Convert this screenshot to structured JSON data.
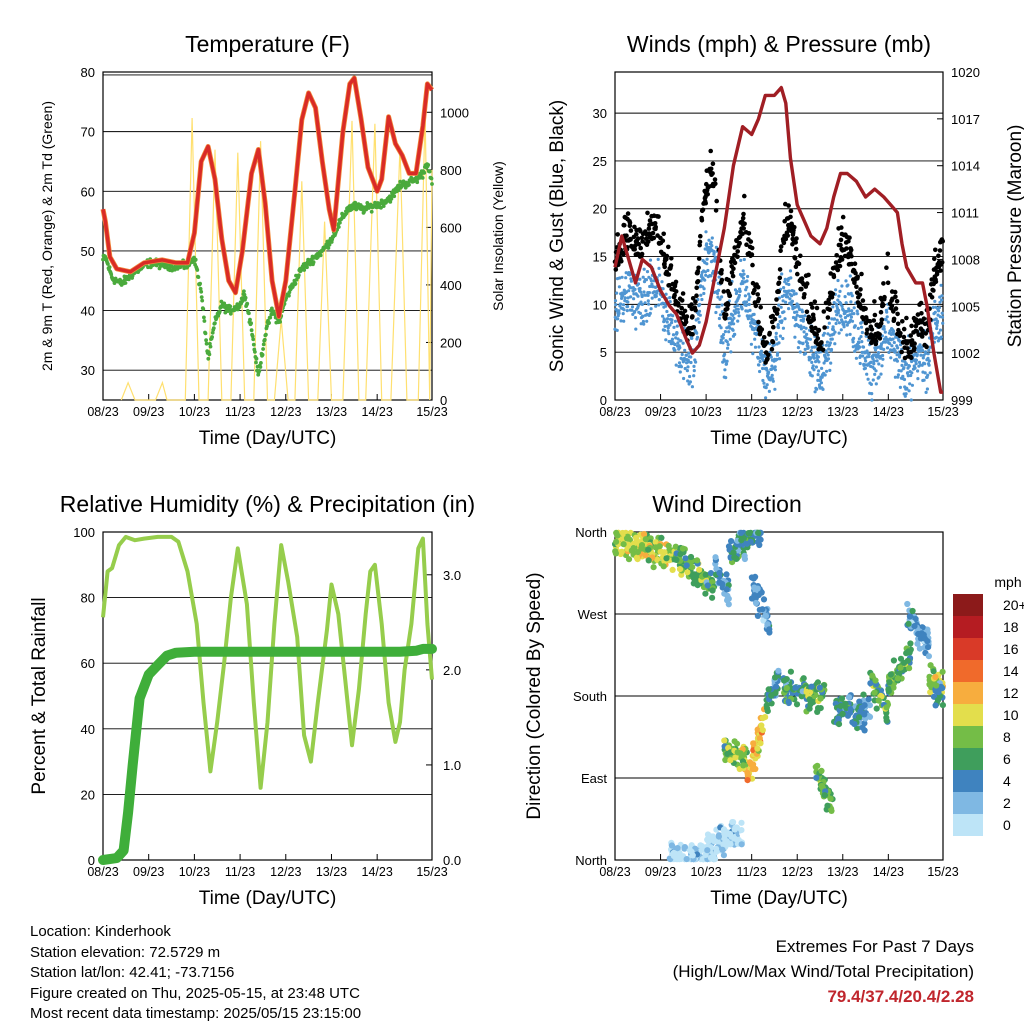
{
  "chart_data": [
    {
      "type": "line",
      "title": "Temperature (F)",
      "xlabel": "Time (Day/UTC)",
      "ylabel": "2m & 9m T (Red, Orange) & 2m Td (Green)",
      "y2label": "Solar Insolation (Yellow)",
      "x_ticks": [
        "08/23",
        "09/23",
        "10/23",
        "11/23",
        "12/23",
        "13/23",
        "14/23",
        "15/23"
      ],
      "ylim": [
        25,
        80
      ],
      "y_ticks": [
        30,
        40,
        50,
        60,
        70,
        80
      ],
      "y2lim": [
        0,
        1140
      ],
      "y2_ticks": [
        0,
        200,
        400,
        600,
        800,
        1000
      ],
      "series": [
        {
          "color": "#d92b27",
          "points": [
            [
              0,
              57
            ],
            [
              0.05,
              55
            ],
            [
              0.15,
              49
            ],
            [
              0.3,
              47
            ],
            [
              0.6,
              46.5
            ],
            [
              0.9,
              48
            ],
            [
              1.3,
              48.5
            ],
            [
              1.6,
              48
            ],
            [
              1.85,
              48
            ],
            [
              2.0,
              53
            ],
            [
              2.15,
              65
            ],
            [
              2.3,
              67.5
            ],
            [
              2.45,
              62
            ],
            [
              2.6,
              52
            ],
            [
              2.75,
              45
            ],
            [
              2.9,
              43
            ],
            [
              3.05,
              50
            ],
            [
              3.25,
              63
            ],
            [
              3.4,
              67
            ],
            [
              3.55,
              58
            ],
            [
              3.7,
              45
            ],
            [
              3.85,
              39
            ],
            [
              4.0,
              45
            ],
            [
              4.2,
              60
            ],
            [
              4.35,
              72
            ],
            [
              4.5,
              76.5
            ],
            [
              4.65,
              74
            ],
            [
              4.8,
              65
            ],
            [
              4.95,
              57
            ],
            [
              5.05,
              53.5
            ],
            [
              5.25,
              70
            ],
            [
              5.4,
              78
            ],
            [
              5.5,
              79
            ],
            [
              5.65,
              72
            ],
            [
              5.8,
              64
            ],
            [
              6.0,
              60
            ],
            [
              6.1,
              62
            ],
            [
              6.25,
              72.5
            ],
            [
              6.4,
              68
            ],
            [
              6.55,
              66
            ],
            [
              6.7,
              63
            ],
            [
              6.85,
              63
            ],
            [
              7.0,
              71
            ],
            [
              7.1,
              78
            ],
            [
              7.2,
              77
            ]
          ]
        },
        {
          "color": "#4aaa3c",
          "points": [
            [
              0,
              48.5
            ],
            [
              0.05,
              49
            ],
            [
              0.2,
              45.5
            ],
            [
              0.4,
              44.5
            ],
            [
              0.7,
              46.5
            ],
            [
              1.0,
              48
            ],
            [
              1.5,
              47.5
            ],
            [
              1.85,
              47.5
            ],
            [
              2.0,
              49
            ],
            [
              2.15,
              43
            ],
            [
              2.3,
              32
            ],
            [
              2.45,
              38
            ],
            [
              2.6,
              41
            ],
            [
              2.75,
              40
            ],
            [
              2.9,
              40.5
            ],
            [
              3.0,
              41
            ],
            [
              3.1,
              43
            ],
            [
              3.25,
              37
            ],
            [
              3.4,
              29
            ],
            [
              3.55,
              36
            ],
            [
              3.7,
              40
            ],
            [
              3.85,
              38
            ],
            [
              4.0,
              42
            ],
            [
              4.2,
              45
            ],
            [
              4.35,
              47
            ],
            [
              4.5,
              48
            ],
            [
              4.65,
              49
            ],
            [
              4.8,
              50
            ],
            [
              5.0,
              52
            ],
            [
              5.2,
              55
            ],
            [
              5.35,
              57
            ],
            [
              5.5,
              57.5
            ],
            [
              5.7,
              57
            ],
            [
              5.9,
              57.5
            ],
            [
              6.1,
              58
            ],
            [
              6.3,
              59
            ],
            [
              6.5,
              61
            ],
            [
              6.7,
              61.5
            ],
            [
              6.85,
              62
            ],
            [
              7.0,
              63
            ],
            [
              7.1,
              65
            ],
            [
              7.2,
              61
            ]
          ]
        },
        {
          "color": "#ffe070",
          "points": [
            [
              0.4,
              0
            ],
            [
              0.55,
              60
            ],
            [
              0.7,
              0
            ],
            [
              1.15,
              0
            ],
            [
              1.3,
              60
            ],
            [
              1.4,
              0
            ],
            [
              1.8,
              0
            ],
            [
              1.95,
              980
            ],
            [
              2.1,
              0
            ],
            [
              2.3,
              0
            ],
            [
              2.45,
              870
            ],
            [
              2.6,
              0
            ],
            [
              2.8,
              0
            ],
            [
              2.95,
              860
            ],
            [
              3.1,
              0
            ],
            [
              3.3,
              0
            ],
            [
              3.45,
              900
            ],
            [
              3.6,
              0
            ],
            [
              3.75,
              0
            ],
            [
              3.9,
              280
            ],
            [
              4.05,
              0
            ],
            [
              4.2,
              0
            ],
            [
              4.35,
              760
            ],
            [
              4.5,
              0
            ],
            [
              4.7,
              0
            ],
            [
              4.85,
              620
            ],
            [
              5.0,
              0
            ],
            [
              5.25,
              0
            ],
            [
              5.45,
              970
            ],
            [
              5.6,
              0
            ],
            [
              5.75,
              0
            ],
            [
              5.95,
              960
            ],
            [
              6.1,
              0
            ],
            [
              6.3,
              0
            ],
            [
              6.5,
              880
            ],
            [
              6.65,
              0
            ],
            [
              6.9,
              0
            ],
            [
              7.05,
              1000
            ],
            [
              7.15,
              0
            ],
            [
              7.2,
              800
            ]
          ]
        }
      ]
    },
    {
      "type": "scatter",
      "title": "Winds (mph) & Pressure (mb)",
      "xlabel": "Time (Day/UTC)",
      "ylabel": "Sonic Wind & Gust (Blue, Black)",
      "y2label": "Station Pressure (Maroon)",
      "x_ticks": [
        "08/23",
        "09/23",
        "10/23",
        "11/23",
        "12/23",
        "13/23",
        "14/23",
        "15/23"
      ],
      "ylim": [
        0,
        34.3
      ],
      "y_ticks": [
        0,
        5,
        10,
        15,
        20,
        25,
        30
      ],
      "y2lim": [
        999,
        1020
      ],
      "y2_ticks": [
        999,
        1002,
        1005,
        1008,
        1011,
        1014,
        1017,
        1020
      ],
      "gust_color": "#000000",
      "wind_color": "#4f95d2",
      "pressure_color": "#a01e24",
      "pressure": [
        [
          0,
          1007.5
        ],
        [
          0.15,
          1009.5
        ],
        [
          0.3,
          1008
        ],
        [
          0.45,
          1006.5
        ],
        [
          0.6,
          1008
        ],
        [
          0.8,
          1007.5
        ],
        [
          1.0,
          1006
        ],
        [
          1.2,
          1005
        ],
        [
          1.35,
          1004.5
        ],
        [
          1.55,
          1003
        ],
        [
          1.7,
          1002
        ],
        [
          1.85,
          1002.5
        ],
        [
          2.0,
          1004
        ],
        [
          2.2,
          1007
        ],
        [
          2.4,
          1010
        ],
        [
          2.6,
          1014
        ],
        [
          2.8,
          1016.5
        ],
        [
          3.0,
          1016
        ],
        [
          3.15,
          1017
        ],
        [
          3.3,
          1018.5
        ],
        [
          3.5,
          1018.5
        ],
        [
          3.65,
          1019
        ],
        [
          3.75,
          1018
        ],
        [
          3.85,
          1014.5
        ],
        [
          4.0,
          1011.5
        ],
        [
          4.15,
          1010.5
        ],
        [
          4.3,
          1009.5
        ],
        [
          4.5,
          1009
        ],
        [
          4.65,
          1010
        ],
        [
          4.8,
          1012
        ],
        [
          4.95,
          1013.5
        ],
        [
          5.1,
          1013.5
        ],
        [
          5.3,
          1013
        ],
        [
          5.5,
          1012
        ],
        [
          5.7,
          1012.5
        ],
        [
          5.9,
          1012
        ],
        [
          6.05,
          1011.5
        ],
        [
          6.2,
          1011
        ],
        [
          6.3,
          1009
        ],
        [
          6.4,
          1007.5
        ],
        [
          6.5,
          1007
        ],
        [
          6.6,
          1006.5
        ],
        [
          6.75,
          1006.5
        ],
        [
          6.85,
          1005
        ],
        [
          7.0,
          1002
        ],
        [
          7.15,
          999.5
        ],
        [
          7.2,
          999.5
        ]
      ]
    },
    {
      "type": "line",
      "title": "Relative Humidity (%) & Precipitation (in)",
      "xlabel": "Time (Day/UTC)",
      "ylabel": "Percent & Total Rainfall",
      "x_ticks": [
        "08/23",
        "09/23",
        "10/23",
        "11/23",
        "12/23",
        "13/23",
        "14/23",
        "15/23"
      ],
      "ylim": [
        0,
        100
      ],
      "y_ticks": [
        0,
        20,
        40,
        60,
        80,
        100
      ],
      "y2lim": [
        0,
        3.45
      ],
      "y2_ticks": [
        "0.0",
        "1.0",
        "2.0",
        "3.0"
      ],
      "series": [
        {
          "color": "#96cd4c",
          "points": [
            [
              0,
              74
            ],
            [
              0.1,
              88
            ],
            [
              0.2,
              89
            ],
            [
              0.35,
              96
            ],
            [
              0.5,
              98.5
            ],
            [
              0.7,
              97.5
            ],
            [
              0.9,
              98
            ],
            [
              1.2,
              98.5
            ],
            [
              1.5,
              98.5
            ],
            [
              1.65,
              97
            ],
            [
              1.85,
              88
            ],
            [
              2.05,
              72
            ],
            [
              2.2,
              48
            ],
            [
              2.35,
              27
            ],
            [
              2.5,
              42
            ],
            [
              2.65,
              60
            ],
            [
              2.8,
              80
            ],
            [
              2.95,
              95
            ],
            [
              3.15,
              78
            ],
            [
              3.3,
              48
            ],
            [
              3.45,
              22
            ],
            [
              3.6,
              42
            ],
            [
              3.75,
              72
            ],
            [
              3.9,
              96
            ],
            [
              4.05,
              85
            ],
            [
              4.25,
              68
            ],
            [
              4.4,
              38
            ],
            [
              4.55,
              30
            ],
            [
              4.7,
              48
            ],
            [
              4.9,
              70
            ],
            [
              5.0,
              84
            ],
            [
              5.15,
              75
            ],
            [
              5.3,
              55
            ],
            [
              5.45,
              35
            ],
            [
              5.6,
              52
            ],
            [
              5.75,
              75
            ],
            [
              5.85,
              88
            ],
            [
              5.95,
              90
            ],
            [
              6.1,
              72
            ],
            [
              6.25,
              48
            ],
            [
              6.4,
              36
            ],
            [
              6.5,
              42
            ],
            [
              6.6,
              58
            ],
            [
              6.75,
              72
            ],
            [
              6.9,
              95
            ],
            [
              7.0,
              98
            ],
            [
              7.1,
              72
            ],
            [
              7.2,
              55
            ]
          ]
        },
        {
          "color": "#3fae3a",
          "points": [
            [
              0,
              0
            ],
            [
              0.3,
              0.02
            ],
            [
              0.45,
              0.1
            ],
            [
              0.55,
              0.5
            ],
            [
              0.65,
              1.0
            ],
            [
              0.8,
              1.7
            ],
            [
              1.0,
              1.95
            ],
            [
              1.2,
              2.05
            ],
            [
              1.4,
              2.15
            ],
            [
              1.6,
              2.18
            ],
            [
              2.0,
              2.19
            ],
            [
              3.0,
              2.19
            ],
            [
              4.0,
              2.19
            ],
            [
              5.0,
              2.19
            ],
            [
              5.5,
              2.19
            ],
            [
              6.0,
              2.19
            ],
            [
              6.5,
              2.19
            ],
            [
              6.85,
              2.2
            ],
            [
              7.0,
              2.22
            ],
            [
              7.2,
              2.22
            ]
          ]
        }
      ]
    },
    {
      "type": "scatter",
      "title": "Wind Direction",
      "xlabel": "Time (Day/UTC)",
      "ylabel": "Direction (Colored By Speed)",
      "x_ticks": [
        "08/23",
        "09/23",
        "10/23",
        "11/23",
        "12/23",
        "13/23",
        "14/23",
        "15/23"
      ],
      "y_ticks": [
        "North",
        "East",
        "South",
        "West",
        "North"
      ],
      "colorbar_title": "mph",
      "colorbar_labels": [
        "0",
        "2",
        "4",
        "6",
        "8",
        "10",
        "12",
        "14",
        "16",
        "18",
        "20+"
      ],
      "colorbar_colors": [
        "#bde4f7",
        "#7fb8e3",
        "#3f83bf",
        "#3f9e5c",
        "#74bd47",
        "#e3de4c",
        "#f7ad3e",
        "#f06a2b",
        "#d93a28",
        "#b51c22",
        "#8c1a1a"
      ]
    }
  ],
  "footer": {
    "location": "Location: Kinderhook",
    "elevation": "Station elevation: 72.5729 m",
    "latlon": "Station lat/lon: 42.41; -73.7156",
    "created": "Figure created on Thu, 2025-05-15, at 23:48 UTC",
    "recent": "Most recent data timestamp: 2025/05/15 23:15:00",
    "extremes_title": "Extremes For Past 7 Days",
    "extremes_sub": "(High/Low/Max Wind/Total Precipitation)",
    "extremes_values": "79.4/37.4/20.4/2.28"
  }
}
